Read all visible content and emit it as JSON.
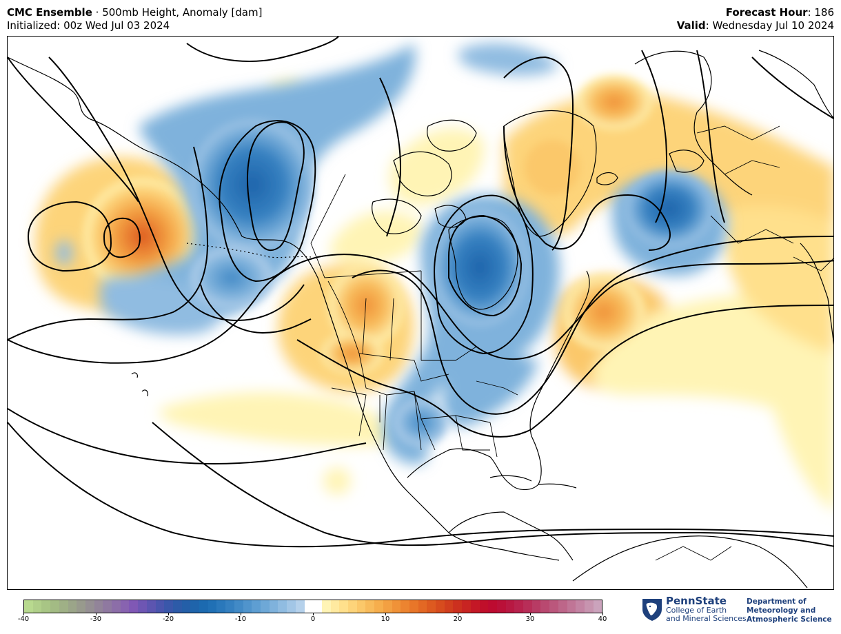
{
  "header": {
    "model": "CMC Ensemble",
    "separator": " · ",
    "field": "500mb Height, Anomaly [dam]",
    "init_label": "Initialized: 00z Wed Jul 03 2024",
    "forecast_hour_label": "Forecast Hour",
    "forecast_hour_value": ": 186",
    "valid_label": "Valid",
    "valid_value": ": Wednesday Jul 10 2024"
  },
  "colorbar": {
    "ticks": [
      "-40",
      "-30",
      "-20",
      "-10",
      "0",
      "10",
      "20",
      "30",
      "40"
    ],
    "min": -40,
    "max": 40,
    "colors": [
      "#b8d98f",
      "#b0cf8a",
      "#a8c585",
      "#a3bb84",
      "#9fb086",
      "#9ba589",
      "#989a8d",
      "#958f93",
      "#928499",
      "#8f79a0",
      "#8c6ea8",
      "#8863b0",
      "#8058b5",
      "#6e56b3",
      "#5c55b0",
      "#4a55ad",
      "#3a57aa",
      "#2d5ba8",
      "#245fa8",
      "#1f64ab",
      "#1c6ab0",
      "#2070b5",
      "#2a78bb",
      "#3580c0",
      "#428ac6",
      "#5094cc",
      "#5e9ed2",
      "#6ea8d7",
      "#7fb2dc",
      "#90bce1",
      "#a2c6e6",
      "#b5d1eb",
      "#ffffff",
      "#ffffff",
      "#fff4b5",
      "#ffeaa0",
      "#ffe08c",
      "#fdd47a",
      "#fbc86a",
      "#f8bb5b",
      "#f6ae4d",
      "#f3a042",
      "#f09238",
      "#ec8430",
      "#e87629",
      "#e36824",
      "#dd5a20",
      "#d74c1e",
      "#d13e1e",
      "#cc301f",
      "#c82422",
      "#c41826",
      "#c00f2a",
      "#bd0b30",
      "#ba1038",
      "#b81842",
      "#b8224d",
      "#b82e58",
      "#b83b64",
      "#b94970",
      "#bb577c",
      "#bd6689",
      "#c07596",
      "#c384a3",
      "#c794af",
      "#cba3bc"
    ],
    "important_colors": {
      "negative": "#1f64ab",
      "positive": "#e36824",
      "neutral": "#ffffff"
    }
  },
  "map": {
    "projection": "polar-stereographic",
    "region": "North America and North Pacific / Atlantic",
    "contour_color": "#000000"
  },
  "branding": {
    "university": "PennState",
    "college_line1": "College of Earth",
    "college_line2": "and Mineral Sciences",
    "dept_line1": "Department of",
    "dept_line2": "Meteorology and",
    "dept_line3": "Atmospheric Science",
    "logo_icon": "nittany-lion-shield-icon"
  }
}
